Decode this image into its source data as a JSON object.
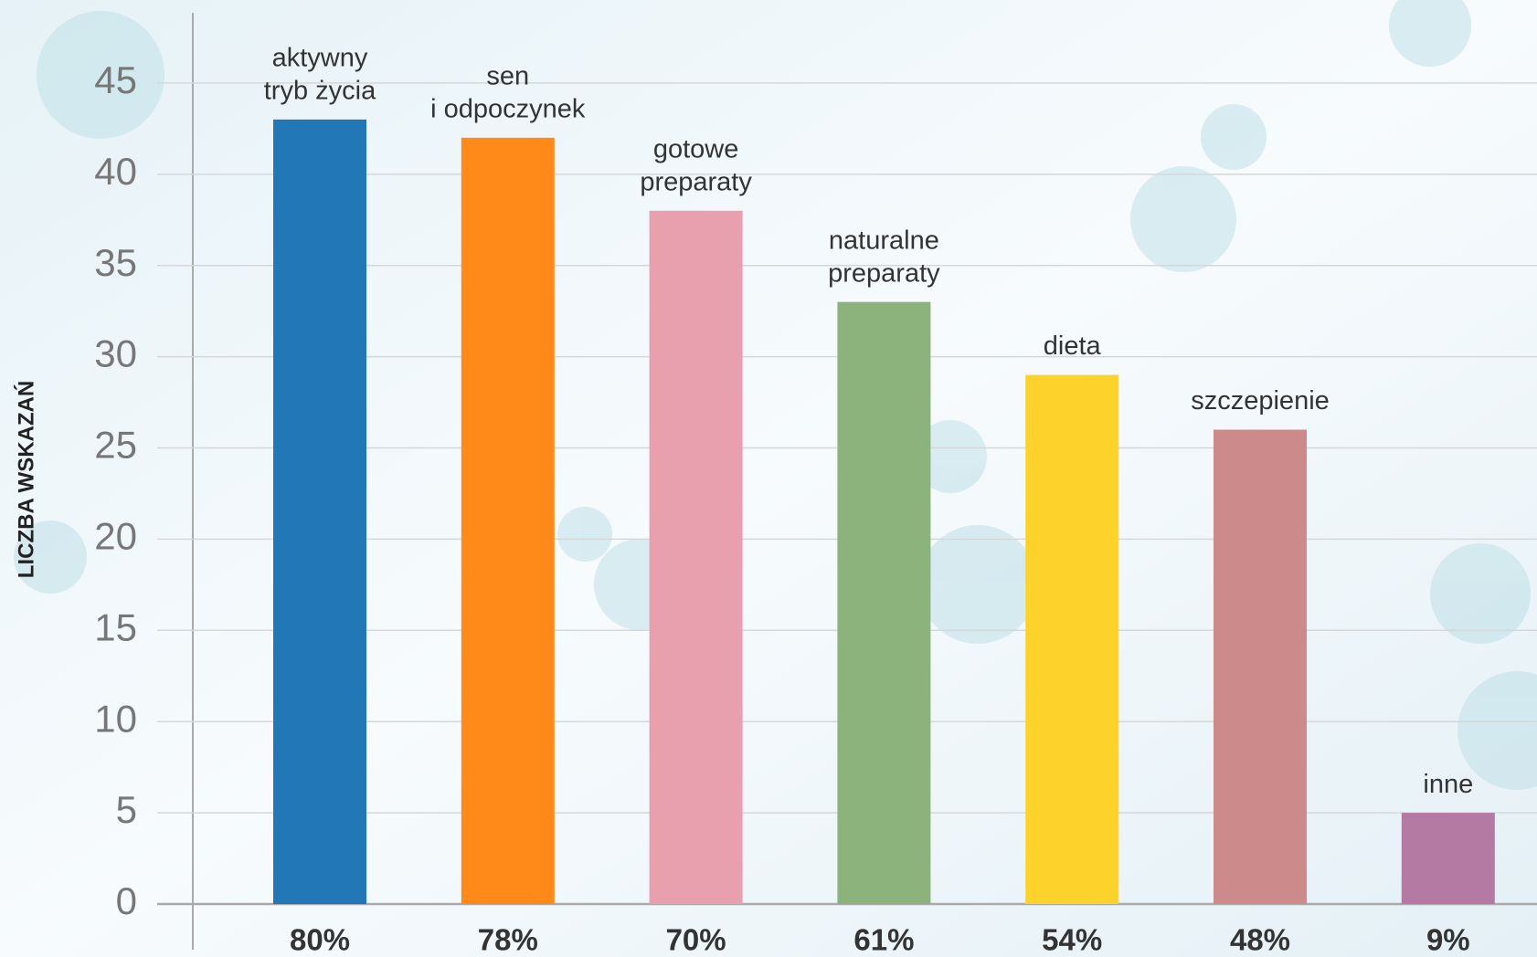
{
  "chart_data": {
    "type": "bar",
    "y_label": "LICZBA WSKAZAŃ",
    "categories": [
      [
        "aktywny",
        "tryb życia"
      ],
      [
        "sen",
        "i odpoczynek"
      ],
      [
        "gotowe",
        "preparaty"
      ],
      [
        "naturalne",
        "preparaty"
      ],
      [
        "dieta"
      ],
      [
        "szczepienie"
      ],
      [
        "inne"
      ]
    ],
    "values": [
      43,
      42,
      38,
      33,
      29,
      26,
      5
    ],
    "percent_labels": [
      "80%",
      "78%",
      "70%",
      "61%",
      "54%",
      "48%",
      "9%"
    ],
    "colors": [
      "#2277b6",
      "#ff8a1a",
      "#e8a0ae",
      "#8db37c",
      "#fdd22b",
      "#cc8b8a",
      "#b47aa4"
    ],
    "ylim": [
      0,
      49
    ],
    "yticks": [
      0,
      5,
      10,
      15,
      20,
      25,
      30,
      35,
      40,
      45
    ],
    "grid": true
  }
}
